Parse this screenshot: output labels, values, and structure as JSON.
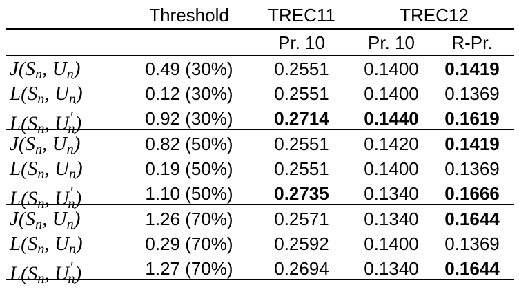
{
  "header": {
    "threshold": "Threshold",
    "trec11": "TREC11",
    "trec12": "TREC12"
  },
  "subheader": {
    "trec11_pr10": "Pr. 10",
    "trec12_pr10": "Pr. 10",
    "trec12_rpr": "R-Pr."
  },
  "rows": [
    {
      "label": "J(Sn, Un)",
      "threshold": "0.49 (30%)",
      "trec11_pr10": "0.2551",
      "trec12_pr10": "0.1400",
      "trec12_rpr": "0.1419",
      "bold": [
        false,
        false,
        true
      ]
    },
    {
      "label": "L(Sn, Un)",
      "threshold": "0.12 (30%)",
      "trec11_pr10": "0.2551",
      "trec12_pr10": "0.1400",
      "trec12_rpr": "0.1369",
      "bold": [
        false,
        false,
        false
      ]
    },
    {
      "label": "L(Sn, U′n)",
      "threshold": "0.92 (30%)",
      "trec11_pr10": "0.2714",
      "trec12_pr10": "0.1440",
      "trec12_rpr": "0.1619",
      "bold": [
        true,
        true,
        true
      ]
    },
    {
      "label": "J(Sn, Un)",
      "threshold": "0.82 (50%)",
      "trec11_pr10": "0.2551",
      "trec12_pr10": "0.1420",
      "trec12_rpr": "0.1419",
      "bold": [
        false,
        false,
        true
      ]
    },
    {
      "label": "L(Sn, Un)",
      "threshold": "0.19 (50%)",
      "trec11_pr10": "0.2551",
      "trec12_pr10": "0.1400",
      "trec12_rpr": "0.1369",
      "bold": [
        false,
        false,
        false
      ]
    },
    {
      "label": "L(Sn, U′n)",
      "threshold": "1.10 (50%)",
      "trec11_pr10": "0.2735",
      "trec12_pr10": "0.1340",
      "trec12_rpr": "0.1666",
      "bold": [
        true,
        false,
        true
      ]
    },
    {
      "label": "J(Sn, Un)",
      "threshold": "1.26 (70%)",
      "trec11_pr10": "0.2571",
      "trec12_pr10": "0.1340",
      "trec12_rpr": "0.1644",
      "bold": [
        false,
        false,
        true
      ]
    },
    {
      "label": "L(Sn, Un)",
      "threshold": "0.29 (70%)",
      "trec11_pr10": "0.2592",
      "trec12_pr10": "0.1400",
      "trec12_rpr": "0.1369",
      "bold": [
        false,
        false,
        false
      ]
    },
    {
      "label": "L(Sn, U′n)",
      "threshold": "1.27 (70%)",
      "trec11_pr10": "0.2694",
      "trec12_pr10": "0.1340",
      "trec12_rpr": "0.1644",
      "bold": [
        false,
        false,
        true
      ]
    }
  ]
}
